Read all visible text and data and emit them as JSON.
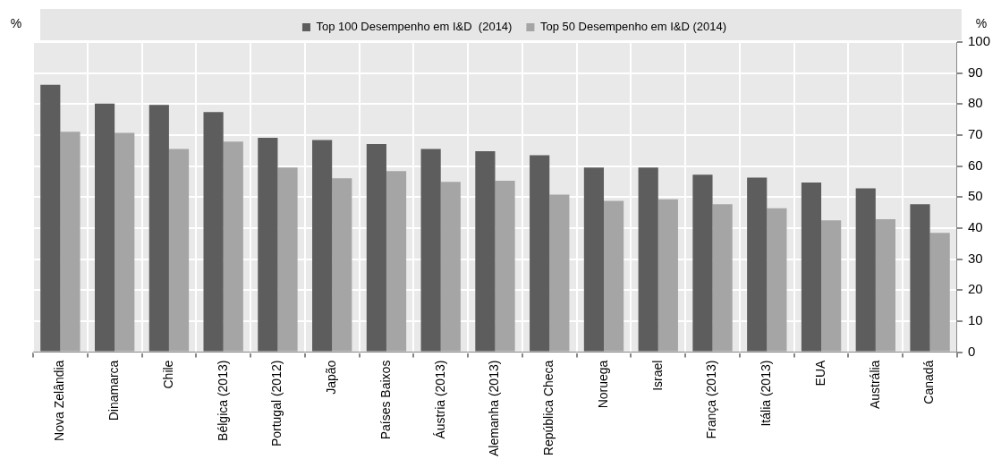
{
  "chart_data": {
    "type": "bar",
    "ylabel": "%",
    "annotations": [
      "%"
    ],
    "categories": [
      "Nova Zelândia",
      "Dinamarca",
      "Chile",
      "Bélgica (2013)",
      "Portugal (2012)",
      "Japão",
      "Países Baixos",
      "Áustria (2013)",
      "Alemanha (2013)",
      "República Checa",
      "Noruega",
      "Israel",
      "França (2013)",
      "Itália (2013)",
      "EUA",
      "Austrália",
      "Canadá"
    ],
    "series": [
      {
        "name": "Top 100 Desempenho em I&D  (2014)",
        "color": "#5d5d5d",
        "values": [
          86.2,
          80.2,
          79.7,
          77.4,
          69.1,
          68.4,
          67.1,
          65.5,
          64.8,
          63.5,
          59.5,
          59.5,
          57.2,
          56.3,
          54.7,
          52.8,
          47.7
        ]
      },
      {
        "name": "Top 50 Desempenho em I&D (2014)",
        "color": "#a5a5a5",
        "values": [
          71.1,
          70.7,
          65.5,
          67.9,
          59.5,
          56.1,
          58.4,
          54.9,
          55.3,
          50.8,
          48.8,
          49.3,
          47.7,
          46.4,
          42.5,
          42.9,
          38.5
        ]
      }
    ],
    "ylim": [
      0,
      100
    ],
    "yticks": [
      0,
      10,
      20,
      30,
      40,
      50,
      60,
      70,
      80,
      90,
      100
    ],
    "grid": true,
    "legend": "top"
  }
}
